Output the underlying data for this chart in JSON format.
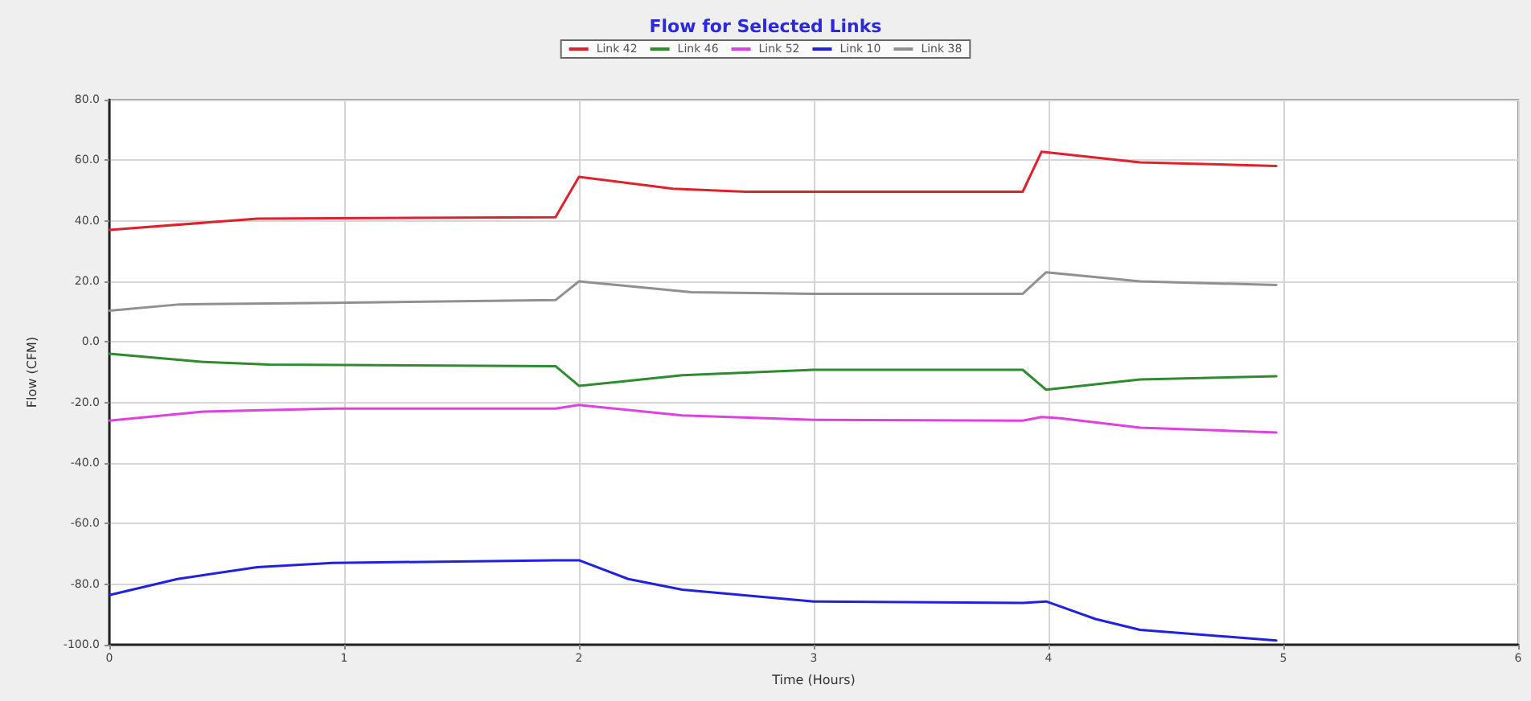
{
  "chart_data": {
    "type": "line",
    "title": "Flow for Selected Links",
    "xlabel": "Time (Hours)",
    "ylabel": "Flow (CFM)",
    "xlim": [
      0,
      6
    ],
    "xticks": [
      0,
      1,
      2,
      3,
      4,
      5,
      6
    ],
    "ylim": [
      -100,
      80
    ],
    "yticks": [
      {
        "value": -100,
        "label": "-100.0"
      },
      {
        "value": -80,
        "label": "-80.0"
      },
      {
        "value": -60,
        "label": "-60.0"
      },
      {
        "value": -40,
        "label": "-40.0"
      },
      {
        "value": -20,
        "label": "-20.0"
      },
      {
        "value": 0,
        "label": "0.0"
      },
      {
        "value": 20,
        "label": "20.0"
      },
      {
        "value": 40,
        "label": "40.0"
      },
      {
        "value": 60,
        "label": "60.0"
      },
      {
        "value": 80,
        "label": "80.0"
      }
    ],
    "grid": true,
    "legend": "top",
    "marker": "none",
    "line_style": "solid",
    "series": [
      {
        "name": "Link 42",
        "color": "#e0202a",
        "x": [
          0,
          0.63,
          1.9,
          2,
          2.4,
          2.71,
          3.89,
          3.97,
          4.39,
          4.97
        ],
        "values": [
          37,
          40.7,
          41.2,
          54.5,
          50.6,
          49.6,
          49.6,
          62.8,
          59.3,
          58.1
        ]
      },
      {
        "name": "Link 46",
        "color": "#2e8b2e",
        "x": [
          0,
          0.4,
          0.68,
          1.9,
          2,
          2.44,
          3,
          3.89,
          3.99,
          4.39,
          4.97
        ],
        "values": [
          -3.9,
          -6.6,
          -7.5,
          -8,
          -14.5,
          -11,
          -9.2,
          -9.2,
          -15.8,
          -12.4,
          -11.3
        ]
      },
      {
        "name": "Link 52",
        "color": "#e040e0",
        "x": [
          0,
          0.4,
          0.95,
          1.9,
          2,
          2.44,
          3,
          3.89,
          3.97,
          4.05,
          4.39,
          4.97
        ],
        "values": [
          -26,
          -23,
          -22,
          -22,
          -20.8,
          -24.3,
          -25.7,
          -26,
          -24.8,
          -25.2,
          -28.3,
          -29.9
        ]
      },
      {
        "name": "Link 10",
        "color": "#2020e0",
        "x": [
          0,
          0.29,
          0.63,
          0.95,
          1.9,
          2,
          2.21,
          2.44,
          3,
          3.89,
          3.99,
          4.2,
          4.39,
          4.97
        ],
        "values": [
          -83.6,
          -78.3,
          -74.4,
          -73,
          -72.1,
          -72.1,
          -78.3,
          -81.8,
          -85.7,
          -86.2,
          -85.7,
          -91.5,
          -95.1,
          -98.6
        ]
      },
      {
        "name": "Link 38",
        "color": "#909090",
        "x": [
          0,
          0.3,
          0.95,
          1.9,
          2,
          2.48,
          3,
          3.89,
          3.99,
          4.39,
          4.97
        ],
        "values": [
          10.3,
          12.4,
          12.9,
          13.8,
          20,
          16.4,
          15.9,
          15.9,
          23,
          20,
          18.8
        ]
      }
    ]
  }
}
